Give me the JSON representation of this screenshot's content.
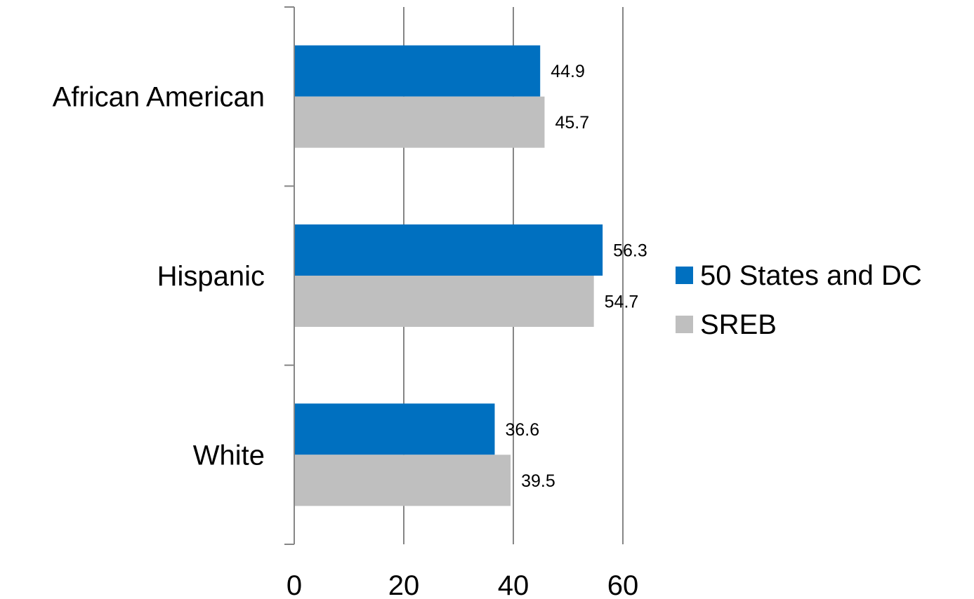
{
  "chart_data": {
    "type": "bar",
    "orientation": "horizontal",
    "categories": [
      "African American",
      "Hispanic",
      "White"
    ],
    "series": [
      {
        "name": "50 States and DC",
        "values": [
          44.9,
          56.3,
          36.6
        ],
        "color": "#0070C0"
      },
      {
        "name": "SREB",
        "values": [
          45.7,
          54.7,
          39.5
        ],
        "color": "#BFBFBF"
      }
    ],
    "xlim": [
      0,
      60
    ],
    "x_ticks": [
      0,
      20,
      40,
      60
    ],
    "x_tick_labels": [
      "0",
      "20",
      "40",
      "60"
    ],
    "grid": true,
    "legend_position": "right",
    "data_labels": true,
    "title": "",
    "xlabel": "",
    "ylabel": ""
  }
}
